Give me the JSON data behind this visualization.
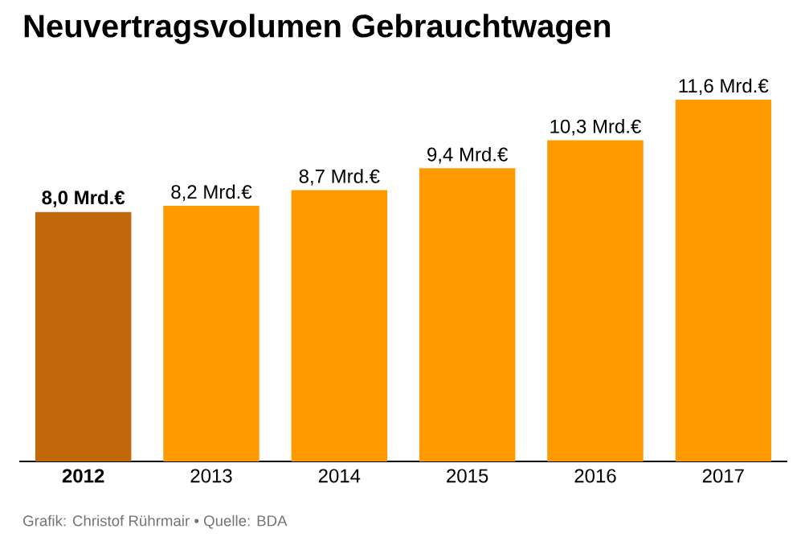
{
  "chart_data": {
    "type": "bar",
    "title": "Neuvertragsvolumen Gebrauchtwagen",
    "categories": [
      "2012",
      "2013",
      "2014",
      "2015",
      "2016",
      "2017"
    ],
    "values": [
      8.0,
      8.2,
      8.7,
      9.4,
      10.3,
      11.6
    ],
    "value_labels": [
      "8,0 Mrd.€",
      "8,2 Mrd.€",
      "8,7 Mrd.€",
      "9,4 Mrd.€",
      "10,3 Mrd.€",
      "11,6 Mrd.€"
    ],
    "colors": [
      "#c2680c",
      "#ff9a00",
      "#ff9a00",
      "#ff9a00",
      "#ff9a00",
      "#ff9a00"
    ],
    "annotations": [
      "Grafik: Christof Rührmair • Quelle: BDA"
    ]
  }
}
